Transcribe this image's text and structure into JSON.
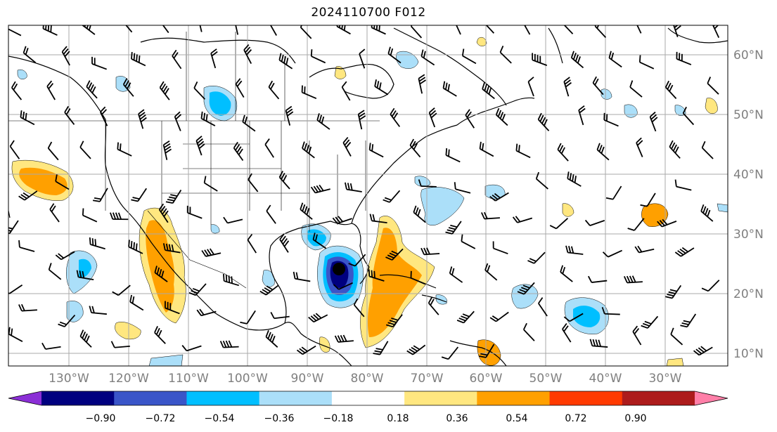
{
  "title": "2024110700 F012",
  "lat_labels": [
    "60°N",
    "50°N",
    "40°N",
    "30°N",
    "20°N",
    "10°N"
  ],
  "lon_labels": [
    "130°W",
    "120°W",
    "110°W",
    "100°W",
    "90°W",
    "80°W",
    "70°W",
    "60°W",
    "50°W",
    "40°W",
    "30°W"
  ],
  "colorbar": {
    "colors": [
      "#8b2fd6",
      "#00007f",
      "#3a55c8",
      "#00bfff",
      "#abdff9",
      "#ffffff",
      "#ffe780",
      "#ffa000",
      "#ff3a00",
      "#ad1c1c",
      "#ff7fa8"
    ],
    "tick_labels": [
      "−0.90",
      "−0.72",
      "−0.54",
      "−0.36",
      "−0.18",
      "0.18",
      "0.36",
      "0.54",
      "0.72",
      "0.90"
    ]
  },
  "storm_marker": "hurricane-center",
  "colors": {
    "grid": "#aaaaaa",
    "coast": "#000000",
    "axis_label": "#7f7f7f"
  }
}
